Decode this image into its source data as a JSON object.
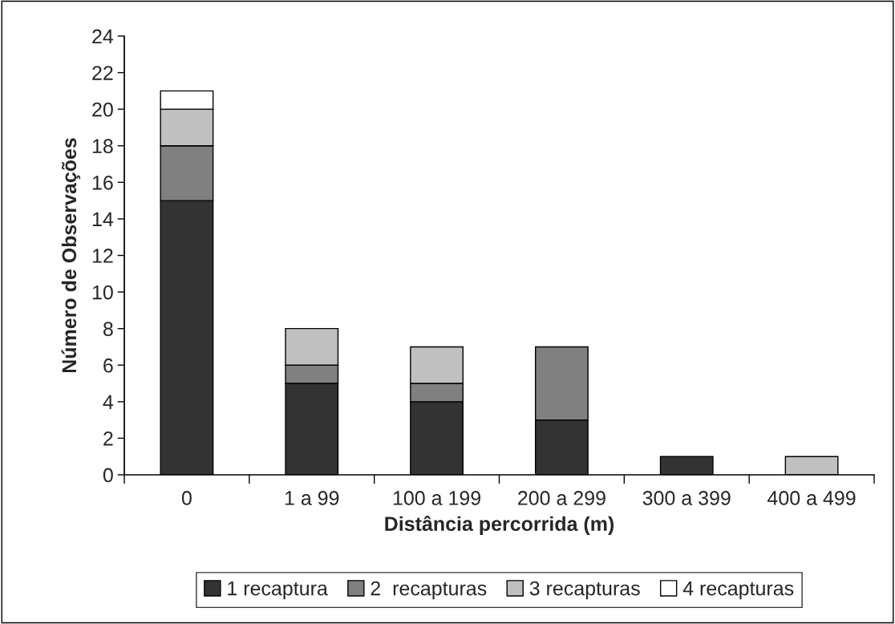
{
  "chart_data": {
    "type": "bar",
    "stacked": true,
    "xlabel": "Distância percorrida (m)",
    "ylabel": "Número de Observações",
    "categories": [
      "0",
      "1 a 99",
      "100 a 199",
      "200 a 299",
      "300 a 399",
      "400 a 499"
    ],
    "series": [
      {
        "name": "1 recaptura",
        "color": "#333333",
        "values": [
          15,
          5,
          4,
          3,
          1,
          0
        ]
      },
      {
        "name": "2  recapturas",
        "color": "#808080",
        "values": [
          3,
          1,
          1,
          4,
          0,
          0
        ]
      },
      {
        "name": "3 recapturas",
        "color": "#c0c0c0",
        "values": [
          2,
          2,
          2,
          0,
          0,
          1
        ]
      },
      {
        "name": "4 recapturas",
        "color": "#ffffff",
        "values": [
          1,
          0,
          0,
          0,
          0,
          0
        ]
      }
    ],
    "ylim": [
      0,
      24
    ],
    "yticks": [
      0,
      2,
      4,
      6,
      8,
      10,
      12,
      14,
      16,
      18,
      20,
      22,
      24
    ],
    "grid": false,
    "legend": "bottom"
  }
}
